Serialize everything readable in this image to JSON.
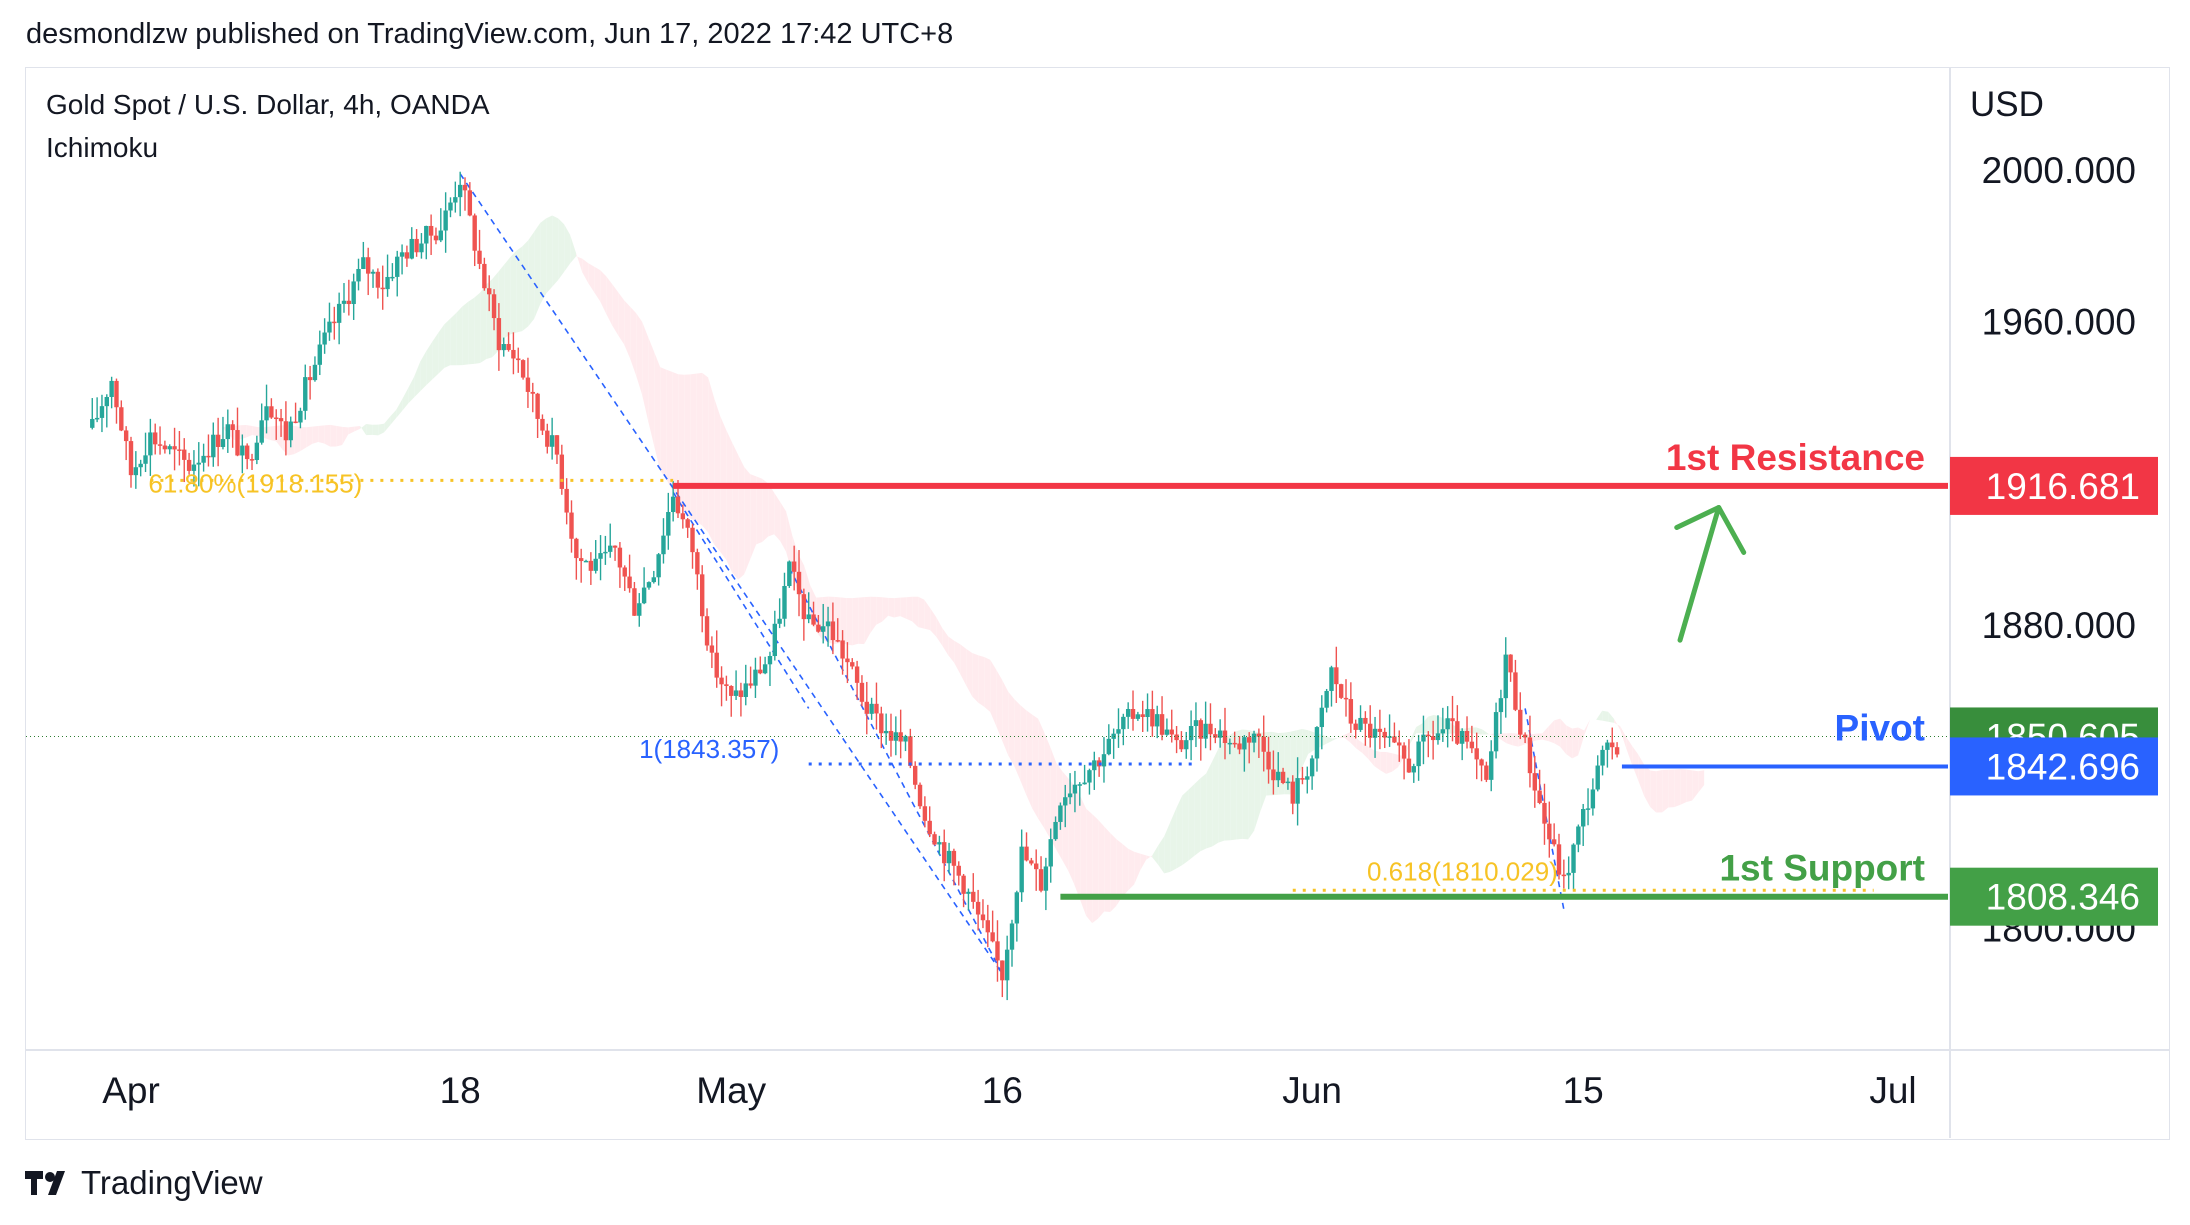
{
  "header": {
    "published_line": "desmondlzw published on TradingView.com, Jun 17, 2022 17:42 UTC+8"
  },
  "footer": {
    "brand": "TradingView"
  },
  "chart_data": {
    "type": "candlestick",
    "symbol_line": "Gold Spot / U.S. Dollar, 4h, OANDA",
    "indicator": "Ichimoku",
    "currency": "USD",
    "ylim": [
      1775,
      2020
    ],
    "y_ticks": [
      2000,
      1960,
      1880,
      1800
    ],
    "y_tick_labels": [
      "2000.000",
      "1960.000",
      "1880.000",
      "1800.000"
    ],
    "x_labels": [
      {
        "label": "Apr",
        "date": "2022-04-01"
      },
      {
        "label": "18",
        "date": "2022-04-18"
      },
      {
        "label": "May",
        "date": "2022-05-02"
      },
      {
        "label": "16",
        "date": "2022-05-16"
      },
      {
        "label": "Jun",
        "date": "2022-06-01"
      },
      {
        "label": "15",
        "date": "2022-06-15"
      },
      {
        "label": "Jul",
        "date": "2022-07-01"
      }
    ],
    "price_path": [
      [
        "2022-03-30",
        1932
      ],
      [
        "2022-03-31",
        1945
      ],
      [
        "2022-04-01",
        1920
      ],
      [
        "2022-04-02",
        1930
      ],
      [
        "2022-04-04",
        1922
      ],
      [
        "2022-04-06",
        1932
      ],
      [
        "2022-04-07",
        1922
      ],
      [
        "2022-04-08",
        1940
      ],
      [
        "2022-04-09",
        1930
      ],
      [
        "2022-04-11",
        1955
      ],
      [
        "2022-04-12",
        1965
      ],
      [
        "2022-04-13",
        1975
      ],
      [
        "2022-04-14",
        1970
      ],
      [
        "2022-04-15",
        1978
      ],
      [
        "2022-04-17",
        1985
      ],
      [
        "2022-04-18",
        1998
      ],
      [
        "2022-04-19",
        1975
      ],
      [
        "2022-04-20",
        1955
      ],
      [
        "2022-04-21",
        1950
      ],
      [
        "2022-04-22",
        1935
      ],
      [
        "2022-04-23",
        1925
      ],
      [
        "2022-04-24",
        1898
      ],
      [
        "2022-04-25",
        1895
      ],
      [
        "2022-04-26",
        1900
      ],
      [
        "2022-04-27",
        1885
      ],
      [
        "2022-04-28",
        1895
      ],
      [
        "2022-04-29",
        1915
      ],
      [
        "2022-04-30",
        1900
      ],
      [
        "2022-05-01",
        1870
      ],
      [
        "2022-05-02",
        1860
      ],
      [
        "2022-05-03",
        1865
      ],
      [
        "2022-05-04",
        1872
      ],
      [
        "2022-05-05",
        1895
      ],
      [
        "2022-05-06",
        1880
      ],
      [
        "2022-05-07",
        1880
      ],
      [
        "2022-05-08",
        1870
      ],
      [
        "2022-05-09",
        1858
      ],
      [
        "2022-05-10",
        1852
      ],
      [
        "2022-05-11",
        1848
      ],
      [
        "2022-05-12",
        1830
      ],
      [
        "2022-05-13",
        1820
      ],
      [
        "2022-05-14",
        1812
      ],
      [
        "2022-05-15",
        1800
      ],
      [
        "2022-05-16",
        1788
      ],
      [
        "2022-05-17",
        1820
      ],
      [
        "2022-05-18",
        1812
      ],
      [
        "2022-05-19",
        1835
      ],
      [
        "2022-05-20",
        1840
      ],
      [
        "2022-05-21",
        1845
      ],
      [
        "2022-05-22",
        1852
      ],
      [
        "2022-05-23",
        1858
      ],
      [
        "2022-05-24",
        1855
      ],
      [
        "2022-05-25",
        1848
      ],
      [
        "2022-05-26",
        1852
      ],
      [
        "2022-05-27",
        1853
      ],
      [
        "2022-05-28",
        1848
      ],
      [
        "2022-05-29",
        1852
      ],
      [
        "2022-05-30",
        1842
      ],
      [
        "2022-05-31",
        1835
      ],
      [
        "2022-06-01",
        1845
      ],
      [
        "2022-06-02",
        1868
      ],
      [
        "2022-06-03",
        1855
      ],
      [
        "2022-06-04",
        1852
      ],
      [
        "2022-06-05",
        1848
      ],
      [
        "2022-06-06",
        1843
      ],
      [
        "2022-06-07",
        1850
      ],
      [
        "2022-06-08",
        1853
      ],
      [
        "2022-06-09",
        1848
      ],
      [
        "2022-06-10",
        1838
      ],
      [
        "2022-06-11",
        1872
      ],
      [
        "2022-06-12",
        1848
      ],
      [
        "2022-06-13",
        1828
      ],
      [
        "2022-06-14",
        1812
      ],
      [
        "2022-06-15",
        1830
      ],
      [
        "2022-06-16",
        1845
      ],
      [
        "2022-06-17",
        1850
      ]
    ],
    "last_price": 1850.605,
    "fibonacci": [
      {
        "label": "61.80%(1918.155)",
        "value": 1918.155,
        "from": "2022-04-02",
        "to": "2022-04-29",
        "color": "#f7c325"
      },
      {
        "label": "1(1843.357)",
        "value": 1843.357,
        "from": "2022-05-06",
        "to": "2022-05-26",
        "color": "#2962ff"
      },
      {
        "label": "0.618(1810.029)",
        "value": 1810.029,
        "from": "2022-05-31",
        "to": "2022-06-30",
        "color": "#f7c325"
      }
    ],
    "fib_construction_lines": [
      [
        [
          "2022-04-18",
          1999
        ],
        [
          "2022-05-16",
          1788
        ]
      ],
      [
        [
          "2022-05-05",
          1895
        ],
        [
          "2022-05-16",
          1788
        ]
      ],
      [
        [
          "2022-04-29",
          1915
        ],
        [
          "2022-05-06",
          1858
        ]
      ],
      [
        [
          "2022-06-12",
          1858
        ],
        [
          "2022-06-14",
          1805
        ]
      ]
    ],
    "levels": [
      {
        "name": "1st Resistance",
        "value": 1916.681,
        "price_label": "1916.681",
        "color": "#f23645",
        "from": "2022-04-29",
        "to": "2022-06-30"
      },
      {
        "name": "Pivot",
        "value": 1842.696,
        "price_label": "1842.696",
        "color": "#2962ff",
        "from": "2022-06-17",
        "to": "2022-06-30"
      },
      {
        "name": "1st Support",
        "value": 1808.346,
        "price_label": "1808.346",
        "color": "#43a047",
        "from": "2022-05-19",
        "to": "2022-06-30"
      }
    ],
    "last_price_label": "1850.605",
    "arrow": {
      "from": [
        "2022-06-20",
        1876
      ],
      "to": [
        "2022-06-22",
        1911
      ],
      "color": "#4caf50"
    },
    "colors": {
      "up": "#26a69a",
      "down": "#ef5350",
      "kumo_bull": "#e8f5e9",
      "kumo_bear": "#ffebee"
    },
    "grid": false
  }
}
